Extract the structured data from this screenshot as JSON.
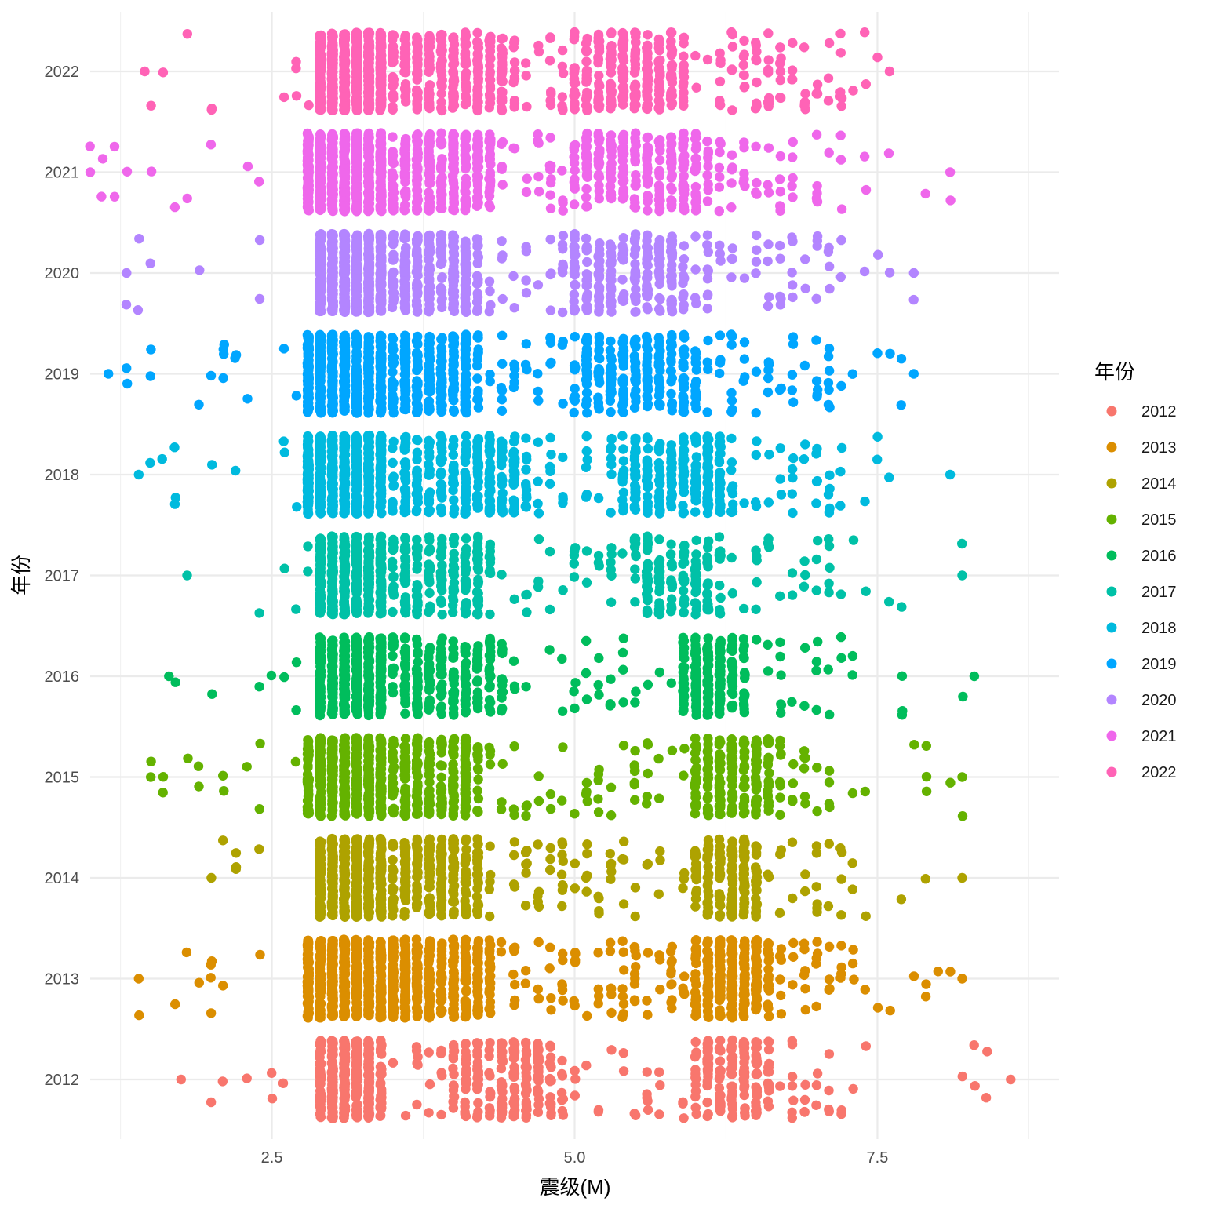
{
  "chart_data": {
    "type": "scatter",
    "subtype": "jittered strip plot",
    "title": "",
    "xlabel": "震级(M)",
    "ylabel": "年份",
    "xlim": [
      1.0,
      9.0
    ],
    "x_ticks": [
      "2.5",
      "5.0",
      "7.5"
    ],
    "x_tick_values": [
      2.5,
      5.0,
      7.5
    ],
    "categories": [
      "2012",
      "2013",
      "2014",
      "2015",
      "2016",
      "2017",
      "2018",
      "2019",
      "2020",
      "2021",
      "2022"
    ],
    "grid": true,
    "legend": {
      "title": "年份",
      "position": "right",
      "entries": [
        "2012",
        "2013",
        "2014",
        "2015",
        "2016",
        "2017",
        "2018",
        "2019",
        "2020",
        "2021",
        "2022"
      ]
    },
    "series": [
      {
        "name": "2012",
        "color": "#F8766D",
        "min": 1.75,
        "max": 8.6,
        "dense": [
          2.9,
          3.4
        ],
        "clusters": [
          [
            4.0,
            4.8
          ],
          [
            6.0,
            6.6
          ]
        ],
        "count": 900
      },
      {
        "name": "2013",
        "color": "#DB8E00",
        "min": 1.4,
        "max": 8.2,
        "dense": [
          2.75,
          3.6
        ],
        "clusters": [
          [
            3.6,
            4.3
          ],
          [
            6.0,
            6.6
          ]
        ],
        "count": 1500
      },
      {
        "name": "2014",
        "color": "#AEA200",
        "min": 2.0,
        "max": 8.2,
        "dense": [
          2.85,
          3.45
        ],
        "clusters": [
          [
            3.5,
            4.2
          ],
          [
            6.0,
            6.5
          ]
        ],
        "count": 1100
      },
      {
        "name": "2015",
        "color": "#64B200",
        "min": 1.5,
        "max": 8.2,
        "dense": [
          2.8,
          3.45
        ],
        "clusters": [
          [
            3.5,
            4.2
          ],
          [
            6.0,
            6.6
          ]
        ],
        "count": 1150
      },
      {
        "name": "2016",
        "color": "#00BD5C",
        "min": 1.65,
        "max": 8.3,
        "dense": [
          2.85,
          3.45
        ],
        "clusters": [
          [
            3.5,
            4.4
          ],
          [
            5.9,
            6.4
          ]
        ],
        "count": 1050
      },
      {
        "name": "2017",
        "color": "#00C1A7",
        "min": 1.8,
        "max": 8.2,
        "dense": [
          2.85,
          3.45
        ],
        "clusters": [
          [
            3.5,
            4.3
          ],
          [
            5.5,
            6.2
          ]
        ],
        "count": 900
      },
      {
        "name": "2018",
        "color": "#00BADE",
        "min": 1.4,
        "max": 8.1,
        "dense": [
          2.75,
          3.45
        ],
        "clusters": [
          [
            3.5,
            4.6
          ],
          [
            5.4,
            6.3
          ]
        ],
        "count": 1350
      },
      {
        "name": "2019",
        "color": "#00A6FF",
        "min": 1.15,
        "max": 7.8,
        "dense": [
          2.75,
          3.45
        ],
        "clusters": [
          [
            3.5,
            4.2
          ],
          [
            5.0,
            6.0
          ]
        ],
        "count": 1300
      },
      {
        "name": "2020",
        "color": "#B385FF",
        "min": 1.3,
        "max": 7.8,
        "dense": [
          2.85,
          3.45
        ],
        "clusters": [
          [
            3.5,
            4.2
          ],
          [
            5.0,
            5.9
          ]
        ],
        "count": 1300
      },
      {
        "name": "2021",
        "color": "#EF67EB",
        "min": 1.0,
        "max": 8.1,
        "dense": [
          2.75,
          3.45
        ],
        "clusters": [
          [
            3.5,
            4.3
          ],
          [
            5.0,
            6.1
          ]
        ],
        "count": 1500
      },
      {
        "name": "2022",
        "color": "#FF63B6",
        "min": 1.45,
        "max": 7.6,
        "dense": [
          2.85,
          3.45
        ],
        "clusters": [
          [
            3.5,
            4.5
          ],
          [
            5.0,
            5.9
          ]
        ],
        "count": 1500
      }
    ]
  }
}
